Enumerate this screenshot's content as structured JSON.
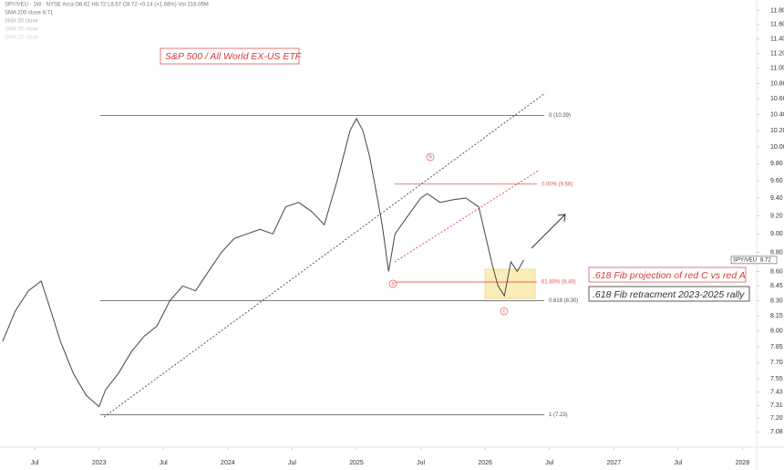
{
  "header": {
    "symbol_line": "SPY/VEU · 1W · NYSE Arca  O8.62  H8.72  L8.57  C8.72  +0.14 (+1.68%)  Vol 216.05M",
    "indicators": [
      "SMA 200 close  8.71",
      "SMA 50 close",
      "SMA 20 close",
      "SMA 10 close"
    ]
  },
  "chart_data": {
    "type": "line",
    "title": "S&P 500 / All World EX-US ETF",
    "log_scale": true,
    "grid": false,
    "x": [
      2022.25,
      2022.35,
      2022.45,
      2022.55,
      2022.6,
      2022.7,
      2022.8,
      2022.9,
      2023.0,
      2023.05,
      2023.15,
      2023.25,
      2023.35,
      2023.45,
      2023.55,
      2023.65,
      2023.75,
      2023.85,
      2023.95,
      2024.05,
      2024.15,
      2024.25,
      2024.35,
      2024.45,
      2024.55,
      2024.65,
      2024.75,
      2024.85,
      2024.95,
      2025.0,
      2025.05,
      2025.1,
      2025.15,
      2025.2,
      2025.25,
      2025.3,
      2025.4,
      2025.5,
      2025.55,
      2025.65,
      2025.75,
      2025.85,
      2025.95,
      2026.0,
      2026.05,
      2026.1,
      2026.15,
      2026.2,
      2026.25,
      2026.3
    ],
    "series": [
      {
        "name": "SPY/VEU",
        "color": "#444444",
        "values": [
          7.9,
          8.2,
          8.4,
          8.5,
          8.3,
          7.9,
          7.6,
          7.4,
          7.3,
          7.45,
          7.6,
          7.8,
          7.95,
          8.05,
          8.3,
          8.45,
          8.4,
          8.6,
          8.8,
          8.95,
          9.0,
          9.05,
          9.0,
          9.3,
          9.35,
          9.25,
          9.1,
          9.6,
          10.2,
          10.35,
          10.2,
          9.9,
          9.5,
          9.1,
          8.6,
          9.0,
          9.2,
          9.4,
          9.45,
          9.35,
          9.38,
          9.4,
          9.3,
          9.0,
          8.7,
          8.45,
          8.35,
          8.7,
          8.6,
          8.72
        ]
      }
    ],
    "last_price": {
      "name": "SPY/VEU",
      "value": 8.72,
      "label": "8.72"
    },
    "xlim": [
      2022.23,
      2028.11
    ],
    "xticks": [
      {
        "value": 2022.5,
        "label": "Jul"
      },
      {
        "value": 2023,
        "label": "2023"
      },
      {
        "value": 2023.5,
        "label": "Jul"
      },
      {
        "value": 2024,
        "label": "2024"
      },
      {
        "value": 2024.5,
        "label": "Jul"
      },
      {
        "value": 2025,
        "label": "2025"
      },
      {
        "value": 2025.5,
        "label": "Jul"
      },
      {
        "value": 2026,
        "label": "2026"
      },
      {
        "value": 2026.5,
        "label": "Jul"
      },
      {
        "value": 2027,
        "label": "2027"
      },
      {
        "value": 2027.5,
        "label": "Jul"
      },
      {
        "value": 2028,
        "label": "2028"
      }
    ],
    "ylim": [
      6.95,
      11.95
    ],
    "yticks": [
      {
        "value": 11.8,
        "label": "11.80"
      },
      {
        "value": 11.6,
        "label": "11.60"
      },
      {
        "value": 11.4,
        "label": "11.40"
      },
      {
        "value": 11.2,
        "label": "11.20"
      },
      {
        "value": 11,
        "label": "11.00"
      },
      {
        "value": 10.8,
        "label": "10.80"
      },
      {
        "value": 10.6,
        "label": "10.60"
      },
      {
        "value": 10.4,
        "label": "10.40"
      },
      {
        "value": 10.2,
        "label": "10.20"
      },
      {
        "value": 10,
        "label": "10.00"
      },
      {
        "value": 9.8,
        "label": "9.80"
      },
      {
        "value": 9.6,
        "label": "9.60"
      },
      {
        "value": 9.4,
        "label": "9.40"
      },
      {
        "value": 9.2,
        "label": "9.20"
      },
      {
        "value": 9,
        "label": "9.00"
      },
      {
        "value": 8.8,
        "label": "8.80"
      },
      {
        "value": 8.6,
        "label": "8.60"
      },
      8.45,
      {
        "value": 8.3,
        "label": "8.30"
      },
      8.15,
      {
        "value": 8,
        "label": "8.00"
      },
      7.85,
      {
        "value": 7.7,
        "label": "7.70"
      },
      7.55,
      7.43,
      7.31,
      {
        "value": 7.2,
        "label": "7.20"
      },
      7.08
    ],
    "fib_retracement": {
      "color": "#555555",
      "levels": [
        {
          "value": 10.39,
          "label": "0 (10.39)"
        },
        {
          "value": 8.3,
          "label": "0.618 (8.30)"
        },
        {
          "value": 7.23,
          "label": "1 (7.23)"
        }
      ]
    },
    "fib_projection": {
      "color": "#e05555",
      "levels": [
        {
          "value": 9.56,
          "label": "0.00% (9.56)"
        },
        {
          "value": 8.49,
          "label": "61.80% (8.49)"
        }
      ]
    },
    "annotations": [
      ".618 Fib projection of red C vs red A",
      ".618 Fib retracment 2023-2025 rally",
      "a",
      "b",
      "c"
    ]
  }
}
